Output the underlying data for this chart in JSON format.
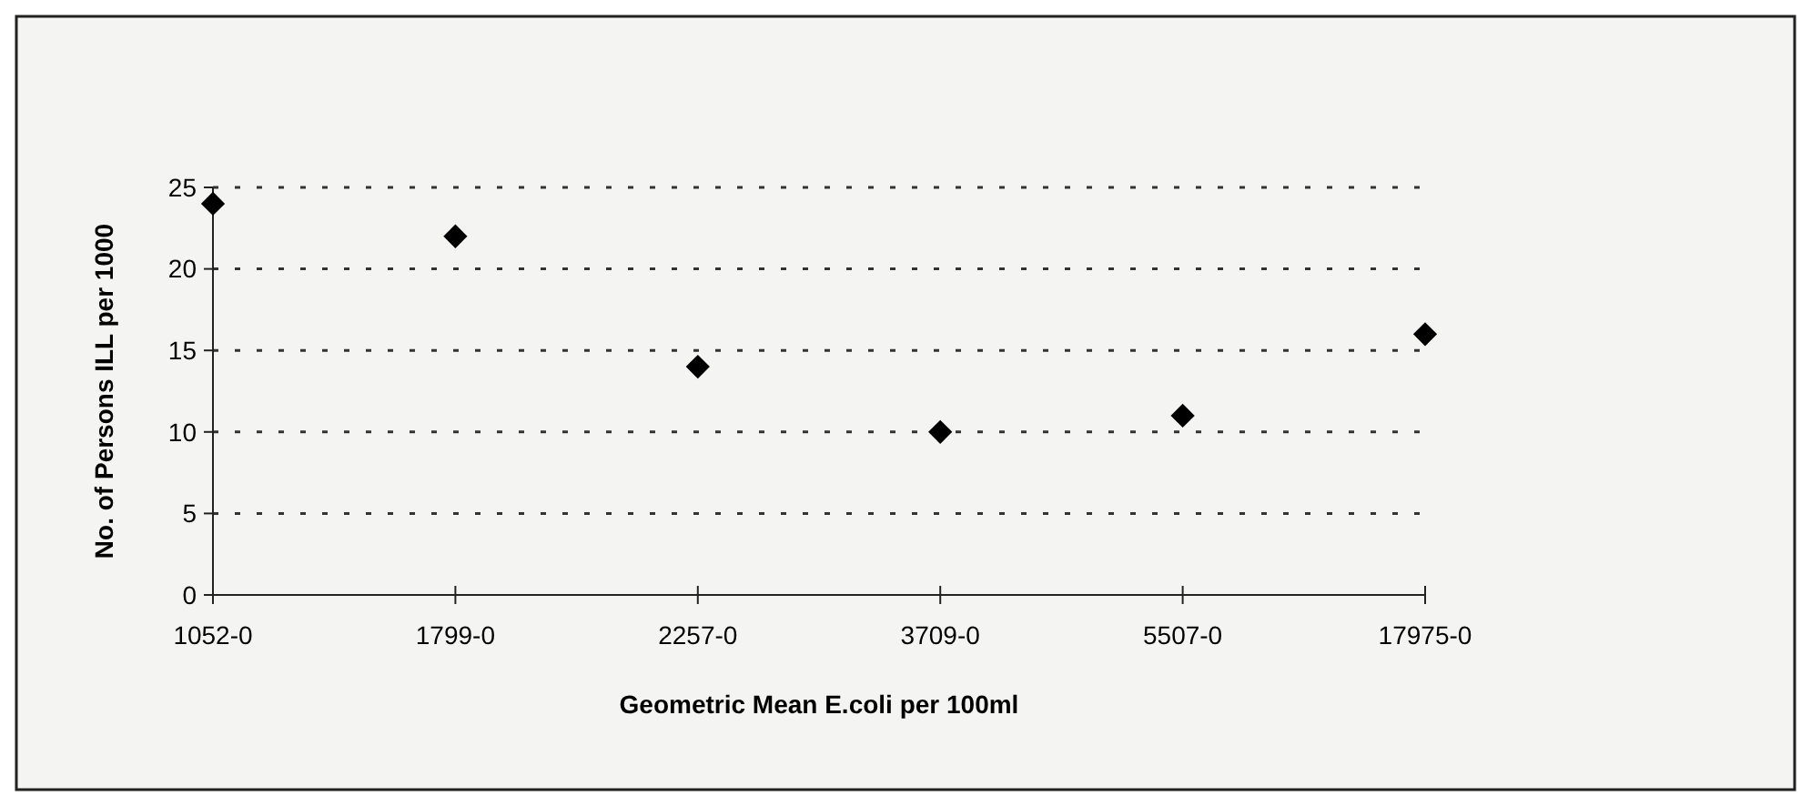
{
  "chart_data": {
    "type": "scatter",
    "xlabel": "Geometric Mean E.coli per 100ml",
    "ylabel": "No. of Persons ILL per 1000",
    "categories": [
      "1052-0",
      "1799-0",
      "2257-0",
      "3709-0",
      "5507-0",
      "17975-0"
    ],
    "values": [
      24,
      22,
      14,
      10,
      11,
      16
    ],
    "color": "#000000",
    "marker": "diamond",
    "ylim": [
      0,
      25
    ],
    "yticks": [
      0,
      5,
      10,
      15,
      20,
      25
    ],
    "grid": "y"
  }
}
